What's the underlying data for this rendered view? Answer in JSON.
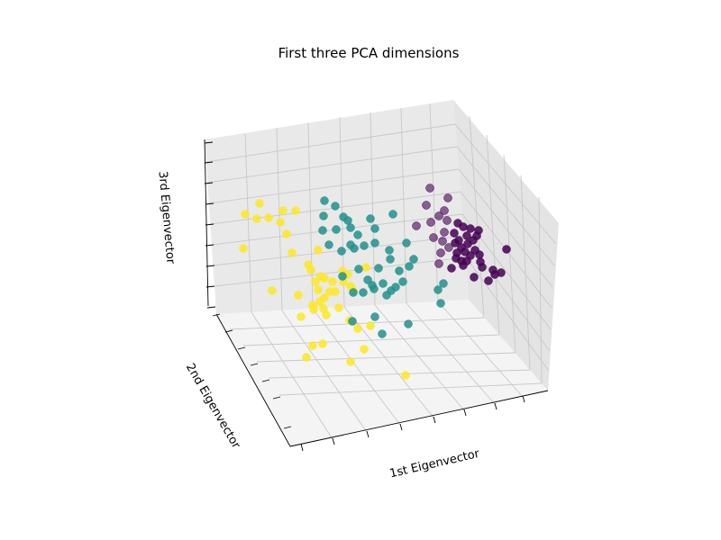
{
  "chart_data": {
    "type": "scatter",
    "title": "First three PCA dimensions",
    "xlabel": "1st Eigenvector",
    "ylabel": "2nd Eigenvector",
    "zlabel": "3rd Eigenvector",
    "colors": {
      "purple": "#440154",
      "teal": "#21918c",
      "yellow": "#fde725"
    },
    "points_purple": [
      [
        477,
        209
      ],
      [
        497,
        220
      ],
      [
        493,
        234
      ],
      [
        473,
        228
      ],
      [
        487,
        240
      ],
      [
        462,
        251
      ],
      [
        478,
        247
      ],
      [
        496,
        245
      ],
      [
        508,
        248
      ],
      [
        514,
        252
      ],
      [
        522,
        254
      ],
      [
        531,
        256
      ],
      [
        504,
        259
      ],
      [
        518,
        262
      ],
      [
        525,
        267
      ],
      [
        509,
        267
      ],
      [
        481,
        264
      ],
      [
        491,
        268
      ],
      [
        498,
        275
      ],
      [
        512,
        275
      ],
      [
        527,
        278
      ],
      [
        532,
        283
      ],
      [
        516,
        280
      ],
      [
        507,
        281
      ],
      [
        489,
        281
      ],
      [
        506,
        287
      ],
      [
        518,
        290
      ],
      [
        533,
        291
      ],
      [
        547,
        300
      ],
      [
        556,
        303
      ],
      [
        542,
        312
      ],
      [
        526,
        308
      ],
      [
        487,
        293
      ],
      [
        501,
        298
      ],
      [
        562,
        277
      ],
      [
        514,
        295
      ],
      [
        522,
        284
      ],
      [
        493,
        258
      ],
      [
        505,
        270
      ],
      [
        535,
        297
      ],
      [
        512,
        290
      ],
      [
        549,
        305
      ],
      [
        519,
        271
      ],
      [
        529,
        262
      ]
    ],
    "points_teal": [
      [
        360,
        223
      ],
      [
        372,
        229
      ],
      [
        381,
        241
      ],
      [
        386,
        245
      ],
      [
        359,
        240
      ],
      [
        411,
        243
      ],
      [
        436,
        238
      ],
      [
        373,
        255
      ],
      [
        358,
        256
      ],
      [
        389,
        253
      ],
      [
        397,
        261
      ],
      [
        416,
        254
      ],
      [
        389,
        272
      ],
      [
        416,
        270
      ],
      [
        432,
        278
      ],
      [
        451,
        270
      ],
      [
        404,
        273
      ],
      [
        393,
        276
      ],
      [
        365,
        272
      ],
      [
        379,
        279
      ],
      [
        433,
        288
      ],
      [
        459,
        288
      ],
      [
        454,
        296
      ],
      [
        443,
        301
      ],
      [
        420,
        298
      ],
      [
        398,
        299
      ],
      [
        408,
        311
      ],
      [
        380,
        307
      ],
      [
        447,
        313
      ],
      [
        425,
        315
      ],
      [
        413,
        317
      ],
      [
        403,
        325
      ],
      [
        392,
        325
      ],
      [
        429,
        328
      ],
      [
        439,
        319
      ],
      [
        492,
        315
      ],
      [
        486,
        322
      ],
      [
        489,
        337
      ],
      [
        434,
        323
      ],
      [
        416,
        352
      ],
      [
        391,
        357
      ],
      [
        453,
        360
      ],
      [
        424,
        371
      ],
      [
        415,
        321
      ]
    ],
    "points_yellow": [
      [
        288,
        226
      ],
      [
        314,
        234
      ],
      [
        328,
        234
      ],
      [
        272,
        238
      ],
      [
        285,
        243
      ],
      [
        298,
        242
      ],
      [
        311,
        247
      ],
      [
        318,
        260
      ],
      [
        270,
        276
      ],
      [
        324,
        281
      ],
      [
        353,
        278
      ],
      [
        342,
        294
      ],
      [
        345,
        300
      ],
      [
        356,
        307
      ],
      [
        350,
        313
      ],
      [
        360,
        309
      ],
      [
        369,
        313
      ],
      [
        380,
        301
      ],
      [
        386,
        305
      ],
      [
        381,
        313
      ],
      [
        389,
        318
      ],
      [
        392,
        323
      ],
      [
        406,
        297
      ],
      [
        372,
        324
      ],
      [
        360,
        331
      ],
      [
        355,
        335
      ],
      [
        347,
        339
      ],
      [
        348,
        344
      ],
      [
        331,
        328
      ],
      [
        302,
        323
      ],
      [
        359,
        343
      ],
      [
        334,
        352
      ],
      [
        376,
        342
      ],
      [
        388,
        356
      ],
      [
        397,
        365
      ],
      [
        411,
        362
      ],
      [
        404,
        388
      ],
      [
        358,
        382
      ],
      [
        347,
        384
      ],
      [
        340,
        397
      ],
      [
        389,
        402
      ],
      [
        450,
        417
      ],
      [
        366,
        324
      ],
      [
        353,
        322
      ],
      [
        362,
        350
      ]
    ]
  }
}
